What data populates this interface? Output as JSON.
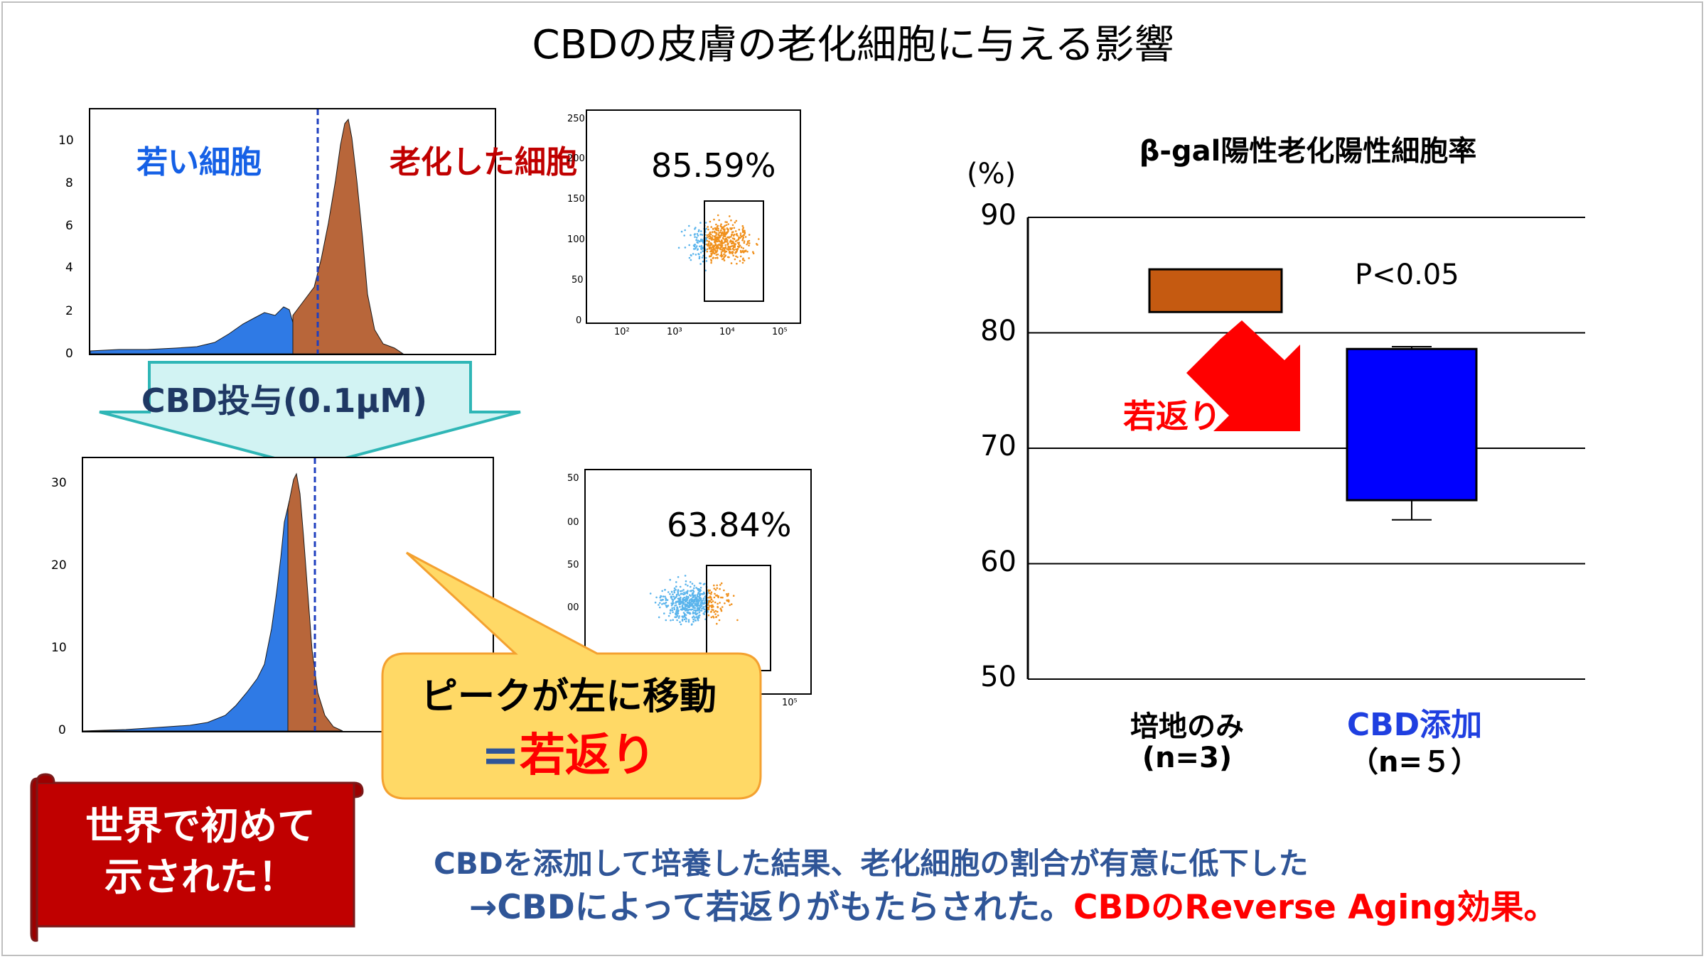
{
  "title": "CBDの皮膚の老化細胞に与える影響",
  "histograms": {
    "young_label": "若い細胞",
    "old_label": "老化した細胞",
    "top_yticks": [
      "10",
      "8",
      "6",
      "4",
      "2",
      "0"
    ],
    "bottom_yticks": [
      "30",
      "20",
      "10",
      "0"
    ]
  },
  "treatment_arrow": "CBD投与(0.1μM)",
  "scatter_top": {
    "percent": "85.59%",
    "yticks": [
      "250",
      "200",
      "150",
      "100",
      "50",
      "0"
    ],
    "xticks": [
      "10²",
      "10³",
      "10⁴",
      "10⁵"
    ]
  },
  "scatter_bottom": {
    "percent": "63.84%",
    "yticks": [
      "50",
      "00",
      "50",
      "00",
      "50"
    ],
    "xticks": [
      "10⁵"
    ]
  },
  "callout": {
    "line1": "ピークが左に移動",
    "eq": "=",
    "line2": "若返り"
  },
  "banner": {
    "line1": "世界で初めて",
    "line2": "示された！"
  },
  "conclusion": {
    "line1": "CBDを添加して培養した結果、老化細胞の割合が有意に低下した",
    "line2_prefix": "→CBDによって若返りがもたらされた。",
    "line2_highlight": "CBDのReverse Aging効果。"
  },
  "colors": {
    "young": "#2f7ae5",
    "old": "#b8663a",
    "medium_bar": "#c55a11",
    "cbd_bar": "#0000ff",
    "highlight_red": "#ff0000",
    "text_blue": "#2f5597"
  },
  "chart_data": {
    "type": "bar",
    "title": "β-gal陽性老化陽性細胞率",
    "ylabel": "(%)",
    "ylim": [
      50,
      90
    ],
    "yticks": [
      "90",
      "80",
      "70",
      "60",
      "50"
    ],
    "categories": [
      "培地のみ",
      "CBD添加"
    ],
    "category_sub": [
      "(n=3)",
      "（n=５）"
    ],
    "bars": [
      {
        "category": "培地のみ",
        "low": 81.8,
        "high": 85.5,
        "color": "#c55a11"
      },
      {
        "category": "CBD添加",
        "low": 65.5,
        "high": 78.6,
        "color": "#0000ff",
        "error_low": 63.8,
        "error_high": 78.8
      }
    ],
    "annotation": "P<0.05",
    "arrow_label": "若返り"
  }
}
